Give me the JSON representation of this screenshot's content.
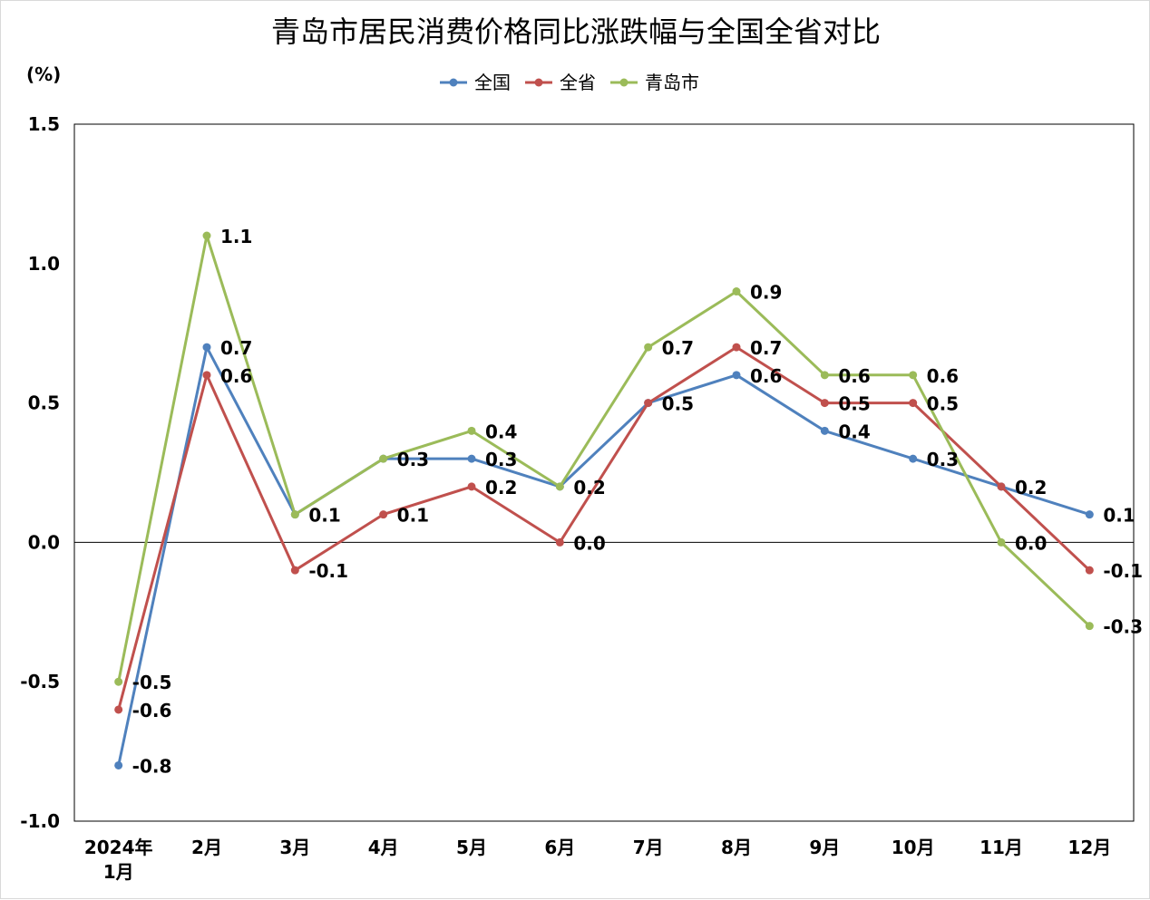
{
  "chart_data": {
    "type": "line",
    "title": "青岛市居民消费价格同比涨跌幅与全国全省对比",
    "ylabel": "(%)",
    "xlabel": "",
    "categories": [
      [
        "2024年",
        "1月"
      ],
      [
        "2月"
      ],
      [
        "3月"
      ],
      [
        "4月"
      ],
      [
        "5月"
      ],
      [
        "6月"
      ],
      [
        "7月"
      ],
      [
        "8月"
      ],
      [
        "9月"
      ],
      [
        "10月"
      ],
      [
        "11月"
      ],
      [
        "12月"
      ]
    ],
    "ylim": [
      -1.0,
      1.5
    ],
    "yticks": [
      "1.5",
      "1.0",
      "0.5",
      "0.0",
      "-0.5",
      "-1.0"
    ],
    "ytick_values": [
      1.5,
      1.0,
      0.5,
      0.0,
      -0.5,
      -1.0
    ],
    "legend_position": "top-center",
    "grid": false,
    "series": [
      {
        "name": "全国",
        "color": "#4f81bd",
        "values": [
          -0.8,
          0.7,
          0.1,
          0.3,
          0.3,
          0.2,
          0.5,
          0.6,
          0.4,
          0.3,
          0.2,
          0.1
        ],
        "labels": [
          "-0.8",
          "0.7",
          "",
          "0.3",
          "0.3",
          "",
          "",
          "0.6",
          "0.4",
          "0.3",
          "",
          "0.1"
        ]
      },
      {
        "name": "全省",
        "color": "#c0504d",
        "values": [
          -0.6,
          0.6,
          -0.1,
          0.1,
          0.2,
          0.0,
          0.5,
          0.7,
          0.5,
          0.5,
          0.2,
          -0.1
        ],
        "labels": [
          "-0.6",
          "0.6",
          "-0.1",
          "0.1",
          "0.2",
          "0.0",
          "0.5",
          "0.7",
          "0.5",
          "0.5",
          "0.2",
          "-0.1"
        ]
      },
      {
        "name": "青岛市",
        "color": "#9bbb59",
        "values": [
          -0.5,
          1.1,
          0.1,
          0.3,
          0.4,
          0.2,
          0.7,
          0.9,
          0.6,
          0.6,
          0.0,
          -0.3
        ],
        "labels": [
          "-0.5",
          "1.1",
          "0.1",
          "",
          "0.4",
          "0.2",
          "0.7",
          "0.9",
          "0.6",
          "0.6",
          "0.0",
          "-0.3"
        ]
      }
    ]
  }
}
